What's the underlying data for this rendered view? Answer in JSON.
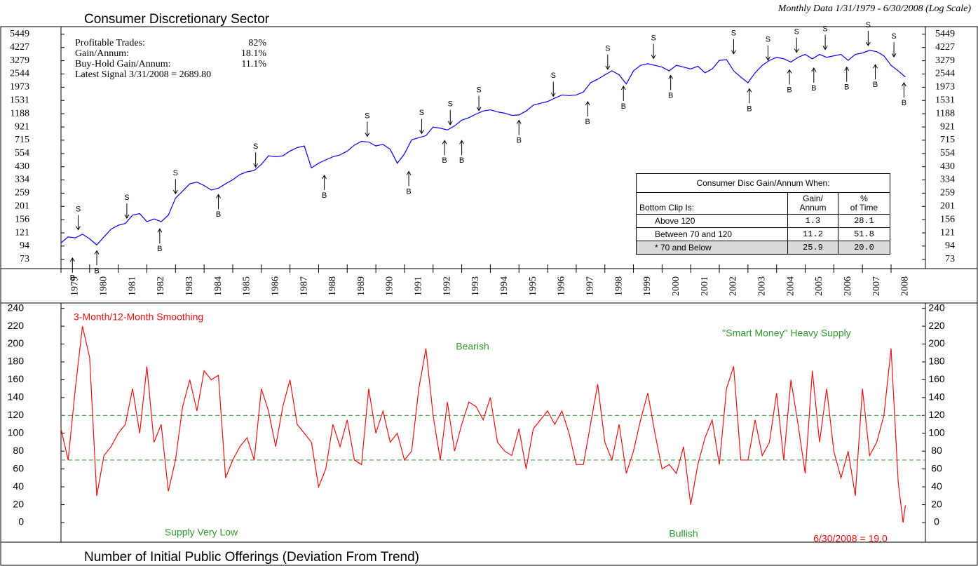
{
  "chart_data": [
    {
      "type": "line",
      "title": "Consumer Discretionary Sector",
      "subtitle": "Monthly Data 1/31/1979 - 6/30/2008 (Log Scale)",
      "log_scale": true,
      "stats": [
        {
          "label": "Profitable Trades:",
          "value": "82%"
        },
        {
          "label": "Gain/Annum:",
          "value": "18.1%"
        },
        {
          "label": "Buy-Hold Gain/Annum:",
          "value": "11.1%"
        }
      ],
      "latest_signal": "Latest Signal 3/31/2008 = 2689.80",
      "table": {
        "title": "Consumer Disc Gain/Annum When:",
        "columns": [
          "Bottom Clip Is:",
          "Gain/\nAnnum",
          "%\nof Time"
        ],
        "rows": [
          [
            "Above 120",
            "1.3",
            "28.1"
          ],
          [
            "Between 70 and 120",
            "11.2",
            "51.8"
          ],
          [
            "* 70 and Below",
            "25.9",
            "20.0"
          ]
        ]
      },
      "xlim": [
        1979,
        2009.2
      ],
      "xticks": [
        1979,
        1980,
        1981,
        1982,
        1983,
        1984,
        1985,
        1986,
        1987,
        1988,
        1989,
        1990,
        1991,
        1992,
        1993,
        1994,
        1995,
        1996,
        1997,
        1998,
        1999,
        2000,
        2001,
        2002,
        2003,
        2004,
        2005,
        2006,
        2007,
        2008
      ],
      "ylim": [
        61,
        6300
      ],
      "yticks": [
        73,
        94,
        121,
        156,
        201,
        259,
        334,
        430,
        554,
        715,
        921,
        1188,
        1531,
        1973,
        2544,
        3279,
        4227,
        5449
      ],
      "x": [
        1979,
        1979.25,
        1979.5,
        1979.75,
        1980,
        1980.25,
        1980.5,
        1980.75,
        1981,
        1981.25,
        1981.5,
        1981.75,
        1982,
        1982.25,
        1982.5,
        1982.75,
        1983,
        1983.25,
        1983.5,
        1983.75,
        1984,
        1984.25,
        1984.5,
        1984.75,
        1985,
        1985.25,
        1985.5,
        1985.75,
        1986,
        1986.25,
        1986.5,
        1986.75,
        1987,
        1987.25,
        1987.5,
        1987.75,
        1988,
        1988.25,
        1988.5,
        1988.75,
        1989,
        1989.25,
        1989.5,
        1989.75,
        1990,
        1990.25,
        1990.5,
        1990.75,
        1991,
        1991.25,
        1991.5,
        1991.75,
        1992,
        1992.25,
        1992.5,
        1992.75,
        1993,
        1993.25,
        1993.5,
        1993.75,
        1994,
        1994.25,
        1994.5,
        1994.75,
        1995,
        1995.25,
        1995.5,
        1995.75,
        1996,
        1996.25,
        1996.5,
        1996.75,
        1997,
        1997.25,
        1997.5,
        1997.75,
        1998,
        1998.25,
        1998.5,
        1998.75,
        1999,
        1999.25,
        1999.5,
        1999.75,
        2000,
        2000.25,
        2000.5,
        2000.75,
        2001,
        2001.25,
        2001.5,
        2001.75,
        2002,
        2002.25,
        2002.5,
        2002.75,
        2003,
        2003.25,
        2003.5,
        2003.75,
        2004,
        2004.25,
        2004.5,
        2004.75,
        2005,
        2005.25,
        2005.5,
        2005.75,
        2006,
        2006.25,
        2006.5,
        2006.75,
        2007,
        2007.25,
        2007.5,
        2007.75,
        2008,
        2008.25,
        2008.5
      ],
      "series": [
        {
          "color": "#0000ee",
          "values": [
            100,
            112,
            110,
            118,
            108,
            96,
            112,
            130,
            140,
            145,
            170,
            175,
            150,
            158,
            150,
            170,
            235,
            270,
            310,
            320,
            300,
            275,
            285,
            310,
            335,
            370,
            390,
            400,
            450,
            530,
            520,
            530,
            580,
            620,
            640,
            420,
            460,
            490,
            520,
            540,
            580,
            650,
            700,
            690,
            640,
            660,
            600,
            460,
            550,
            720,
            750,
            780,
            920,
            900,
            870,
            940,
            1050,
            1100,
            1180,
            1250,
            1280,
            1230,
            1200,
            1150,
            1160,
            1250,
            1400,
            1450,
            1500,
            1600,
            1700,
            1680,
            1700,
            1800,
            2150,
            2300,
            2500,
            2700,
            2500,
            2100,
            2700,
            3000,
            3100,
            3000,
            2900,
            2700,
            3000,
            2900,
            2800,
            2950,
            2600,
            2800,
            3300,
            3350,
            2700,
            2400,
            2150,
            2600,
            3000,
            3300,
            3500,
            3400,
            3200,
            3500,
            3700,
            3400,
            3700,
            3500,
            3600,
            3700,
            3300,
            3700,
            3800,
            4000,
            3900,
            3600,
            3000,
            2700,
            2400
          ]
        }
      ],
      "signals": [
        {
          "label": "S",
          "x": 1979.6,
          "y": 120
        },
        {
          "label": "S",
          "x": 1981.3,
          "y": 150
        },
        {
          "label": "S",
          "x": 1983.0,
          "y": 240
        },
        {
          "label": "S",
          "x": 1985.8,
          "y": 400
        },
        {
          "label": "S",
          "x": 1989.7,
          "y": 720
        },
        {
          "label": "S",
          "x": 1991.6,
          "y": 760
        },
        {
          "label": "S",
          "x": 1992.6,
          "y": 900
        },
        {
          "label": "S",
          "x": 1993.6,
          "y": 1180
        },
        {
          "label": "S",
          "x": 1996.2,
          "y": 1550
        },
        {
          "label": "S",
          "x": 1998.1,
          "y": 2600
        },
        {
          "label": "S",
          "x": 1999.7,
          "y": 3200
        },
        {
          "label": "S",
          "x": 2002.5,
          "y": 3500
        },
        {
          "label": "S",
          "x": 2003.7,
          "y": 3100
        },
        {
          "label": "S",
          "x": 2004.7,
          "y": 3600
        },
        {
          "label": "S",
          "x": 2005.7,
          "y": 3800
        },
        {
          "label": "S",
          "x": 2007.2,
          "y": 4100
        },
        {
          "label": "S",
          "x": 2008.1,
          "y": 3300
        },
        {
          "label": "B",
          "x": 1979.4,
          "y": 80
        },
        {
          "label": "B",
          "x": 1980.25,
          "y": 92
        },
        {
          "label": "B",
          "x": 1982.45,
          "y": 140
        },
        {
          "label": "B",
          "x": 1984.5,
          "y": 270
        },
        {
          "label": "B",
          "x": 1988.2,
          "y": 390
        },
        {
          "label": "B",
          "x": 1991.15,
          "y": 420
        },
        {
          "label": "B",
          "x": 1992.4,
          "y": 760
        },
        {
          "label": "B",
          "x": 1993.0,
          "y": 760
        },
        {
          "label": "B",
          "x": 1995.0,
          "y": 1120
        },
        {
          "label": "B",
          "x": 1997.4,
          "y": 1600
        },
        {
          "label": "B",
          "x": 1998.65,
          "y": 2150
        },
        {
          "label": "B",
          "x": 2000.3,
          "y": 2650
        },
        {
          "label": "B",
          "x": 2003.05,
          "y": 2050
        },
        {
          "label": "B",
          "x": 2004.45,
          "y": 2950
        },
        {
          "label": "B",
          "x": 2005.3,
          "y": 3050
        },
        {
          "label": "B",
          "x": 2006.45,
          "y": 3100
        },
        {
          "label": "B",
          "x": 2007.45,
          "y": 3250
        },
        {
          "label": "B",
          "x": 2008.45,
          "y": 2300
        }
      ]
    },
    {
      "type": "line",
      "title": "Number of Initial Public Offerings (Deviation From Trend)",
      "xlim": [
        1979,
        2009.2
      ],
      "ylim": [
        -22,
        246
      ],
      "yticks": [
        0,
        20,
        40,
        60,
        80,
        100,
        120,
        140,
        160,
        180,
        200,
        220,
        240
      ],
      "reference_lines": [
        {
          "value": 120,
          "color": "#3aa03a"
        },
        {
          "value": 70,
          "color": "#3aa03a"
        }
      ],
      "annotations": [
        {
          "text": "3-Month/12-Month Smoothing",
          "color": "#ee1111"
        },
        {
          "text": "Bearish",
          "color": "#2e9a2e"
        },
        {
          "text": "\"Smart Money\" Heavy Supply",
          "color": "#2e9a2e"
        },
        {
          "text": "Supply Very Low",
          "color": "#2e9a2e"
        },
        {
          "text": "Bullish",
          "color": "#2e9a2e"
        },
        {
          "text": "6/30/2008 = 19.0",
          "color": "#ee1111"
        }
      ],
      "x": [
        1979,
        1979.25,
        1979.5,
        1979.75,
        1980,
        1980.25,
        1980.5,
        1980.75,
        1981,
        1981.25,
        1981.5,
        1981.75,
        1982,
        1982.25,
        1982.5,
        1982.75,
        1983,
        1983.25,
        1983.5,
        1983.75,
        1984,
        1984.25,
        1984.5,
        1984.75,
        1985,
        1985.25,
        1985.5,
        1985.75,
        1986,
        1986.25,
        1986.5,
        1986.75,
        1987,
        1987.25,
        1987.5,
        1987.75,
        1988,
        1988.25,
        1988.5,
        1988.75,
        1989,
        1989.25,
        1989.5,
        1989.75,
        1990,
        1990.25,
        1990.5,
        1990.75,
        1991,
        1991.25,
        1991.5,
        1991.75,
        1992,
        1992.25,
        1992.5,
        1992.75,
        1993,
        1993.25,
        1993.5,
        1993.75,
        1994,
        1994.25,
        1994.5,
        1994.75,
        1995,
        1995.25,
        1995.5,
        1995.75,
        1996,
        1996.25,
        1996.5,
        1996.75,
        1997,
        1997.25,
        1997.5,
        1997.75,
        1998,
        1998.25,
        1998.5,
        1998.75,
        1999,
        1999.25,
        1999.5,
        1999.75,
        2000,
        2000.25,
        2000.5,
        2000.75,
        2001,
        2001.25,
        2001.5,
        2001.75,
        2002,
        2002.25,
        2002.5,
        2002.75,
        2003,
        2003.25,
        2003.5,
        2003.75,
        2004,
        2004.25,
        2004.5,
        2004.75,
        2005,
        2005.25,
        2005.5,
        2005.75,
        2006,
        2006.25,
        2006.5,
        2006.75,
        2007,
        2007.25,
        2007.5,
        2007.75,
        2008,
        2008.25,
        2008.42,
        2008.5
      ],
      "series": [
        {
          "color": "#ee1111",
          "values": [
            105,
            70,
            150,
            220,
            185,
            30,
            75,
            85,
            100,
            110,
            150,
            100,
            175,
            90,
            110,
            35,
            70,
            130,
            160,
            125,
            170,
            160,
            165,
            50,
            70,
            85,
            95,
            70,
            150,
            125,
            85,
            130,
            160,
            110,
            100,
            90,
            40,
            60,
            110,
            85,
            115,
            70,
            65,
            150,
            100,
            125,
            90,
            100,
            70,
            80,
            150,
            195,
            120,
            70,
            135,
            80,
            110,
            135,
            130,
            115,
            140,
            90,
            80,
            75,
            105,
            60,
            105,
            115,
            125,
            110,
            125,
            100,
            65,
            65,
            110,
            155,
            90,
            70,
            110,
            55,
            80,
            115,
            145,
            100,
            60,
            65,
            55,
            85,
            20,
            65,
            95,
            115,
            65,
            150,
            175,
            70,
            70,
            115,
            75,
            90,
            145,
            70,
            160,
            110,
            55,
            170,
            90,
            150,
            80,
            50,
            80,
            30,
            150,
            75,
            90,
            120,
            195,
            45,
            0,
            19
          ]
        }
      ]
    }
  ]
}
